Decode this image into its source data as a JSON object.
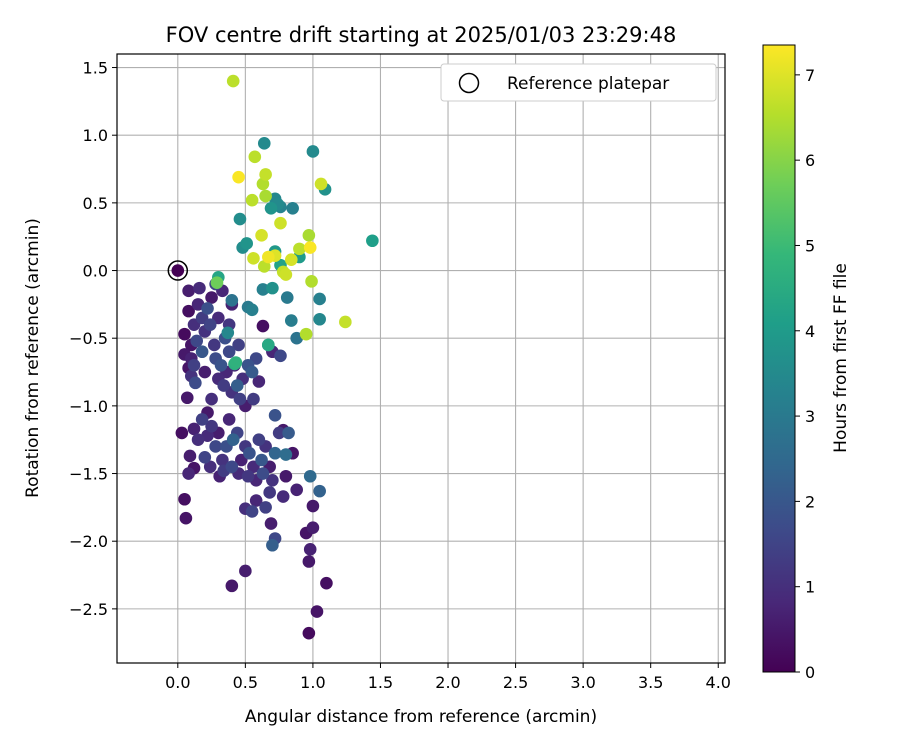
{
  "chart_data": {
    "type": "scatter",
    "title": "FOV centre drift starting at 2025/01/03 23:29:48",
    "xlabel": "Angular distance from reference (arcmin)",
    "ylabel": "Rotation from reference (arcmin)",
    "xlim": [
      -0.45,
      4.05
    ],
    "ylim": [
      -2.9,
      1.6
    ],
    "xticks": [
      "0.0",
      "0.5",
      "1.0",
      "1.5",
      "2.0",
      "2.5",
      "3.0",
      "3.5",
      "4.0"
    ],
    "xtick_values": [
      0,
      0.5,
      1,
      1.5,
      2,
      2.5,
      3,
      3.5,
      4
    ],
    "yticks": [
      "−2.5",
      "−2.0",
      "−1.5",
      "−1.0",
      "−0.5",
      "0.0",
      "0.5",
      "1.0",
      "1.5"
    ],
    "ytick_values": [
      -2.5,
      -2,
      -1.5,
      -1,
      -0.5,
      0,
      0.5,
      1,
      1.5
    ],
    "grid": true,
    "legend": {
      "location": "upper right",
      "entries": [
        "Reference platepar"
      ]
    },
    "reference_point": {
      "x": 0,
      "y": 0,
      "label": "Reference platepar"
    },
    "colorbar": {
      "label": "Hours from first FF file",
      "min": 0,
      "max": 7.35,
      "ticks": [
        "0",
        "1",
        "2",
        "3",
        "4",
        "5",
        "6",
        "7"
      ],
      "tick_values": [
        0,
        1,
        2,
        3,
        4,
        5,
        6,
        7
      ],
      "colormap": [
        "#440154",
        "#482878",
        "#3e4989",
        "#31688e",
        "#26828e",
        "#1f9e89",
        "#35b779",
        "#6ece58",
        "#b5de2b",
        "#fde725"
      ]
    },
    "points": [
      [
        0.0,
        0.0,
        0.0
      ],
      [
        0.05,
        -0.47,
        0.2
      ],
      [
        0.08,
        -0.15,
        0.6
      ],
      [
        0.08,
        -0.3,
        0.3
      ],
      [
        0.05,
        -0.62,
        0.5
      ],
      [
        0.1,
        -0.55,
        0.4
      ],
      [
        0.15,
        -0.25,
        0.8
      ],
      [
        0.12,
        -0.4,
        1.0
      ],
      [
        0.18,
        -0.35,
        1.3
      ],
      [
        0.2,
        -0.45,
        1.1
      ],
      [
        0.14,
        -0.52,
        1.6
      ],
      [
        0.22,
        -0.28,
        1.8
      ],
      [
        0.16,
        -0.13,
        0.9
      ],
      [
        0.24,
        -0.4,
        1.5
      ],
      [
        0.27,
        -0.55,
        1.2
      ],
      [
        0.1,
        -0.65,
        0.7
      ],
      [
        0.12,
        -0.7,
        1.4
      ],
      [
        0.18,
        -0.6,
        2.0
      ],
      [
        0.2,
        -0.75,
        0.6
      ],
      [
        0.28,
        -0.65,
        1.7
      ],
      [
        0.3,
        -0.8,
        0.9
      ],
      [
        0.25,
        -0.95,
        1.0
      ],
      [
        0.22,
        -1.05,
        0.5
      ],
      [
        0.32,
        -0.7,
        1.9
      ],
      [
        0.34,
        -0.85,
        1.3
      ],
      [
        0.36,
        -0.75,
        0.8
      ],
      [
        0.38,
        -0.6,
        1.6
      ],
      [
        0.4,
        -0.9,
        1.1
      ],
      [
        0.42,
        -0.7,
        0.7
      ],
      [
        0.44,
        -0.85,
        2.2
      ],
      [
        0.46,
        -0.95,
        1.4
      ],
      [
        0.48,
        -0.8,
        1.0
      ],
      [
        0.5,
        -1.0,
        0.6
      ],
      [
        0.35,
        -0.5,
        1.8
      ],
      [
        0.38,
        -0.4,
        1.2
      ],
      [
        0.3,
        -0.35,
        0.9
      ],
      [
        0.25,
        -0.2,
        0.5
      ],
      [
        0.33,
        -0.15,
        0.8
      ],
      [
        0.28,
        -0.1,
        1.5
      ],
      [
        0.4,
        -0.25,
        0.7
      ],
      [
        0.45,
        -0.55,
        1.4
      ],
      [
        0.52,
        -0.7,
        1.9
      ],
      [
        0.55,
        -0.75,
        2.1
      ],
      [
        0.58,
        -0.65,
        1.6
      ],
      [
        0.6,
        -0.82,
        0.8
      ],
      [
        0.56,
        -0.95,
        1.3
      ],
      [
        0.07,
        -0.94,
        0.5
      ],
      [
        0.1,
        -0.78,
        1.1
      ],
      [
        0.13,
        -0.83,
        1.7
      ],
      [
        0.08,
        -0.72,
        0.4
      ],
      [
        0.03,
        -1.2,
        0.3
      ],
      [
        0.12,
        -1.17,
        0.7
      ],
      [
        0.15,
        -1.25,
        1.0
      ],
      [
        0.18,
        -1.1,
        1.4
      ],
      [
        0.22,
        -1.22,
        0.9
      ],
      [
        0.25,
        -1.15,
        1.2
      ],
      [
        0.28,
        -1.3,
        1.6
      ],
      [
        0.3,
        -1.2,
        0.6
      ],
      [
        0.33,
        -1.4,
        1.1
      ],
      [
        0.36,
        -1.3,
        1.8
      ],
      [
        0.38,
        -1.1,
        0.8
      ],
      [
        0.41,
        -1.25,
        2.3
      ],
      [
        0.44,
        -1.2,
        1.5
      ],
      [
        0.47,
        -1.4,
        0.7
      ],
      [
        0.5,
        -1.3,
        1.2
      ],
      [
        0.53,
        -1.35,
        1.9
      ],
      [
        0.56,
        -1.45,
        0.9
      ],
      [
        0.6,
        -1.25,
        1.4
      ],
      [
        0.62,
        -1.4,
        2.0
      ],
      [
        0.65,
        -1.3,
        1.1
      ],
      [
        0.68,
        -1.45,
        0.6
      ],
      [
        0.72,
        -1.35,
        2.4
      ],
      [
        0.75,
        -1.2,
        1.3
      ],
      [
        0.78,
        -1.18,
        0.5
      ],
      [
        0.82,
        -1.2,
        2.1
      ],
      [
        0.85,
        -1.35,
        0.4
      ],
      [
        0.09,
        -1.37,
        0.6
      ],
      [
        0.12,
        -1.46,
        0.4
      ],
      [
        0.08,
        -1.5,
        0.8
      ],
      [
        0.2,
        -1.38,
        1.5
      ],
      [
        0.24,
        -1.45,
        1.0
      ],
      [
        0.31,
        -1.52,
        0.7
      ],
      [
        0.34,
        -1.48,
        1.3
      ],
      [
        0.4,
        -1.45,
        1.6
      ],
      [
        0.45,
        -1.5,
        0.9
      ],
      [
        0.52,
        -1.52,
        1.2
      ],
      [
        0.58,
        -1.55,
        0.8
      ],
      [
        0.63,
        -1.5,
        1.7
      ],
      [
        0.7,
        -1.55,
        1.1
      ],
      [
        0.8,
        -1.52,
        0.5
      ],
      [
        0.65,
        -1.75,
        1.4
      ],
      [
        0.05,
        -1.69,
        0.3
      ],
      [
        0.06,
        -1.83,
        0.4
      ],
      [
        0.5,
        -1.76,
        1.0
      ],
      [
        0.55,
        -1.78,
        1.5
      ],
      [
        0.58,
        -1.7,
        0.8
      ],
      [
        0.68,
        -1.64,
        1.2
      ],
      [
        0.69,
        -1.87,
        0.6
      ],
      [
        0.72,
        -1.98,
        1.6
      ],
      [
        0.7,
        -2.03,
        2.2
      ],
      [
        0.78,
        -1.67,
        0.9
      ],
      [
        0.88,
        -1.62,
        0.7
      ],
      [
        0.98,
        -1.52,
        2.5
      ],
      [
        1.0,
        -1.74,
        0.5
      ],
      [
        1.05,
        -1.63,
        2.3
      ],
      [
        0.95,
        -1.94,
        0.4
      ],
      [
        1.0,
        -1.9,
        0.6
      ],
      [
        0.98,
        -2.06,
        0.7
      ],
      [
        0.97,
        -2.15,
        0.5
      ],
      [
        1.1,
        -2.31,
        0.3
      ],
      [
        1.03,
        -2.52,
        0.4
      ],
      [
        0.97,
        -2.68,
        0.2
      ],
      [
        0.4,
        -2.33,
        0.5
      ],
      [
        0.5,
        -2.22,
        0.6
      ],
      [
        0.63,
        -0.41,
        0.3
      ],
      [
        0.7,
        -0.6,
        0.8
      ],
      [
        0.76,
        -0.63,
        1.6
      ],
      [
        0.72,
        -1.07,
        1.9
      ],
      [
        0.8,
        -1.36,
        2.6
      ],
      [
        0.67,
        -0.55,
        3.0
      ],
      [
        0.55,
        -0.29,
        3.2
      ],
      [
        0.52,
        -0.27,
        3.0
      ],
      [
        0.4,
        -0.22,
        2.8
      ],
      [
        0.37,
        -0.46,
        3.4
      ],
      [
        0.3,
        -0.05,
        4.3
      ],
      [
        0.42,
        -0.69,
        4.6
      ],
      [
        0.46,
        0.38,
        3.6
      ],
      [
        0.48,
        0.17,
        3.6
      ],
      [
        0.51,
        0.2,
        3.8
      ],
      [
        0.63,
        -0.14,
        3.2
      ],
      [
        0.64,
        0.94,
        3.5
      ],
      [
        0.69,
        0.46,
        3.8
      ],
      [
        0.72,
        0.53,
        3.4
      ],
      [
        0.76,
        0.47,
        3.3
      ],
      [
        0.85,
        0.46,
        3.2
      ],
      [
        0.81,
        -0.2,
        3.0
      ],
      [
        0.84,
        -0.37,
        3.1
      ],
      [
        0.88,
        -0.5,
        2.8
      ],
      [
        0.7,
        -0.13,
        3.7
      ],
      [
        0.72,
        0.14,
        3.9
      ],
      [
        0.76,
        0.04,
        4.2
      ],
      [
        0.74,
        0.49,
        3.5
      ],
      [
        0.9,
        0.1,
        4.0
      ],
      [
        1.0,
        0.88,
        3.5
      ],
      [
        1.05,
        -0.21,
        3.2
      ],
      [
        1.05,
        -0.36,
        3.4
      ],
      [
        1.09,
        0.6,
        3.7
      ],
      [
        1.44,
        0.22,
        4.1
      ],
      [
        0.67,
        -0.55,
        4.4
      ],
      [
        0.43,
        -0.68,
        4.7
      ],
      [
        0.29,
        -0.09,
        5.7
      ],
      [
        0.41,
        1.4,
        6.6
      ],
      [
        0.45,
        0.69,
        7.3
      ],
      [
        0.57,
        0.84,
        6.6
      ],
      [
        0.63,
        0.64,
        6.5
      ],
      [
        0.65,
        0.71,
        6.7
      ],
      [
        0.55,
        0.52,
        6.6
      ],
      [
        0.65,
        0.55,
        6.4
      ],
      [
        0.76,
        0.35,
        6.8
      ],
      [
        0.62,
        0.26,
        6.9
      ],
      [
        0.56,
        0.09,
        6.8
      ],
      [
        0.64,
        0.03,
        6.6
      ],
      [
        0.67,
        0.1,
        7.2
      ],
      [
        0.72,
        0.11,
        7.0
      ],
      [
        0.78,
        -0.01,
        6.7
      ],
      [
        0.8,
        -0.03,
        6.8
      ],
      [
        0.84,
        0.08,
        6.9
      ],
      [
        0.9,
        0.16,
        6.6
      ],
      [
        0.97,
        0.26,
        6.4
      ],
      [
        0.98,
        0.17,
        7.3
      ],
      [
        0.99,
        -0.08,
        6.5
      ],
      [
        1.06,
        0.64,
        6.8
      ],
      [
        0.95,
        -0.47,
        6.5
      ],
      [
        1.24,
        -0.38,
        6.7
      ]
    ]
  }
}
